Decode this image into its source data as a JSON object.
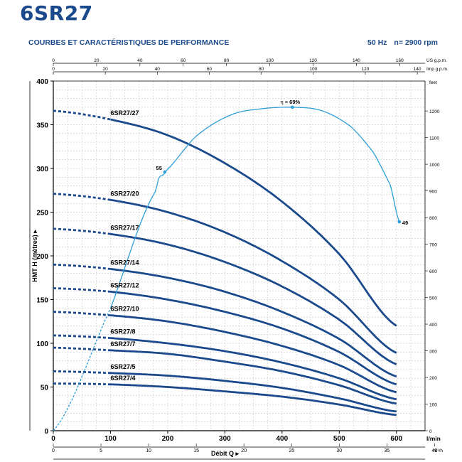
{
  "header": {
    "model": "6SR27",
    "subtitle": "COURBES ET CARACTÉRISTIQUES DE PERFORMANCE",
    "freq": "50 Hz",
    "speed": "n= 2900 rpm"
  },
  "colors": {
    "title": "#1b4a8c",
    "curve": "#1b4a8c",
    "efficiency": "#2f9fd8",
    "grid": "#bdbdbd",
    "axis": "#000000"
  },
  "chart_data": {
    "type": "line",
    "title": "6SR27",
    "xlabel": "Débit Q",
    "ylabel": "HMT H (mètres)",
    "grid": true,
    "xlim": [
      0,
      650
    ],
    "ylim": [
      0,
      400
    ],
    "x_unit": "l/min",
    "x_ticks": [
      0,
      100,
      200,
      300,
      400,
      500,
      600
    ],
    "y_ticks": [
      0,
      50,
      100,
      150,
      200,
      250,
      300,
      350,
      400
    ],
    "secondary_axes": {
      "bottom_m3h": {
        "unit": "m³/h",
        "ticks": [
          0,
          5,
          10,
          15,
          20,
          25,
          30,
          35,
          40
        ]
      },
      "top_usgpm": {
        "unit": "US g.p.m.",
        "ticks": [
          0,
          20,
          40,
          60,
          80,
          100,
          120,
          140,
          160
        ]
      },
      "top_impgpm": {
        "unit": "Imp g.p.m.",
        "ticks": [
          0,
          20,
          40,
          60,
          80,
          100,
          120,
          140
        ]
      },
      "right_feet": {
        "unit": "feet",
        "ticks": [
          0,
          100,
          200,
          300,
          400,
          500,
          600,
          700,
          800,
          900,
          1000,
          1100,
          1200
        ]
      }
    },
    "curve_range": {
      "dashed_from": 0,
      "solid_from": 100,
      "to": 600
    },
    "series": [
      {
        "name": "6SR27/27",
        "values": [
          {
            "x": 0,
            "y": 366
          },
          {
            "x": 100,
            "y": 356
          },
          {
            "x": 200,
            "y": 338
          },
          {
            "x": 300,
            "y": 306
          },
          {
            "x": 400,
            "y": 262
          },
          {
            "x": 500,
            "y": 202
          },
          {
            "x": 600,
            "y": 120
          }
        ]
      },
      {
        "name": "6SR27/20",
        "values": [
          {
            "x": 0,
            "y": 271
          },
          {
            "x": 100,
            "y": 264
          },
          {
            "x": 200,
            "y": 250
          },
          {
            "x": 300,
            "y": 227
          },
          {
            "x": 400,
            "y": 194
          },
          {
            "x": 500,
            "y": 150
          },
          {
            "x": 600,
            "y": 89
          }
        ]
      },
      {
        "name": "6SR27/17",
        "values": [
          {
            "x": 0,
            "y": 231
          },
          {
            "x": 100,
            "y": 225
          },
          {
            "x": 200,
            "y": 213
          },
          {
            "x": 300,
            "y": 193
          },
          {
            "x": 400,
            "y": 165
          },
          {
            "x": 500,
            "y": 127
          },
          {
            "x": 600,
            "y": 76
          }
        ]
      },
      {
        "name": "6SR27/14",
        "values": [
          {
            "x": 0,
            "y": 190
          },
          {
            "x": 100,
            "y": 185
          },
          {
            "x": 200,
            "y": 175
          },
          {
            "x": 300,
            "y": 159
          },
          {
            "x": 400,
            "y": 136
          },
          {
            "x": 500,
            "y": 105
          },
          {
            "x": 600,
            "y": 62
          }
        ]
      },
      {
        "name": "6SR27/12",
        "values": [
          {
            "x": 0,
            "y": 163
          },
          {
            "x": 100,
            "y": 159
          },
          {
            "x": 200,
            "y": 150
          },
          {
            "x": 300,
            "y": 136
          },
          {
            "x": 400,
            "y": 117
          },
          {
            "x": 500,
            "y": 90
          },
          {
            "x": 600,
            "y": 53
          }
        ]
      },
      {
        "name": "6SR27/10",
        "values": [
          {
            "x": 0,
            "y": 136
          },
          {
            "x": 100,
            "y": 132
          },
          {
            "x": 200,
            "y": 125
          },
          {
            "x": 300,
            "y": 113
          },
          {
            "x": 400,
            "y": 97
          },
          {
            "x": 500,
            "y": 75
          },
          {
            "x": 600,
            "y": 44
          }
        ]
      },
      {
        "name": "6SR27/8",
        "values": [
          {
            "x": 0,
            "y": 109
          },
          {
            "x": 100,
            "y": 106
          },
          {
            "x": 200,
            "y": 100
          },
          {
            "x": 300,
            "y": 91
          },
          {
            "x": 400,
            "y": 78
          },
          {
            "x": 500,
            "y": 60
          },
          {
            "x": 600,
            "y": 36
          }
        ]
      },
      {
        "name": "6SR27/7",
        "values": [
          {
            "x": 0,
            "y": 95
          },
          {
            "x": 100,
            "y": 92
          },
          {
            "x": 200,
            "y": 88
          },
          {
            "x": 300,
            "y": 79
          },
          {
            "x": 400,
            "y": 68
          },
          {
            "x": 500,
            "y": 52
          },
          {
            "x": 600,
            "y": 31
          }
        ]
      },
      {
        "name": "6SR27/5",
        "values": [
          {
            "x": 0,
            "y": 68
          },
          {
            "x": 100,
            "y": 66
          },
          {
            "x": 200,
            "y": 63
          },
          {
            "x": 300,
            "y": 57
          },
          {
            "x": 400,
            "y": 49
          },
          {
            "x": 500,
            "y": 37
          },
          {
            "x": 600,
            "y": 22
          }
        ]
      },
      {
        "name": "6SR27/4",
        "values": [
          {
            "x": 0,
            "y": 54
          },
          {
            "x": 100,
            "y": 53
          },
          {
            "x": 200,
            "y": 50
          },
          {
            "x": 300,
            "y": 45
          },
          {
            "x": 400,
            "y": 39
          },
          {
            "x": 500,
            "y": 30
          },
          {
            "x": 600,
            "y": 18
          }
        ]
      }
    ],
    "efficiency_curve": {
      "label_prefix": "η =",
      "values": [
        {
          "x": 0,
          "y": 0
        },
        {
          "x": 100,
          "y": 140
        },
        {
          "x": 180,
          "y": 275
        },
        {
          "x": 195,
          "y": 296
        },
        {
          "x": 250,
          "y": 337
        },
        {
          "x": 310,
          "y": 361
        },
        {
          "x": 360,
          "y": 368
        },
        {
          "x": 418,
          "y": 370
        },
        {
          "x": 470,
          "y": 366
        },
        {
          "x": 520,
          "y": 348
        },
        {
          "x": 560,
          "y": 318
        },
        {
          "x": 590,
          "y": 280
        },
        {
          "x": 605,
          "y": 239
        }
      ],
      "dashed_to_x": 100,
      "points": [
        {
          "label": "55",
          "x": 195,
          "y": 296
        },
        {
          "label": "69%",
          "x": 418,
          "y": 370
        },
        {
          "label": "49",
          "x": 605,
          "y": 239
        }
      ]
    }
  }
}
